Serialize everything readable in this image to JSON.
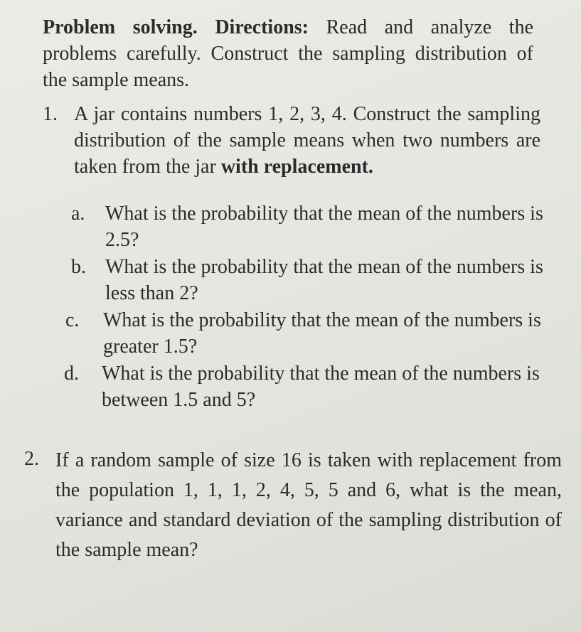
{
  "header": {
    "label": "Problem solving. Directions:",
    "text": "Read and analyze the problems carefully. Construct the sampling distribution of the sample means."
  },
  "problems": [
    {
      "number": "1.",
      "text": "A jar contains numbers 1, 2, 3, 4. Construct the sampling distribution of the sample means when two numbers are taken from the jar",
      "emphasis": "with replacement.",
      "items": [
        {
          "letter": "a.",
          "text": "What is the probability that the mean of the numbers is 2.5?"
        },
        {
          "letter": "b.",
          "text": "What is the probability that the mean of the numbers is less than 2?"
        },
        {
          "letter": "c.",
          "text": "What is the probability that the mean of the numbers is greater 1.5?"
        },
        {
          "letter": "d.",
          "text": "What is the probability that the mean of the numbers is between 1.5 and 5?"
        }
      ]
    },
    {
      "number": "2.",
      "text": "If a random sample of size 16 is taken with replacement from the population 1, 1, 1, 2, 4, 5, 5 and 6, what is the mean, variance and standard deviation of the sampling distribution of the sample mean?"
    }
  ]
}
